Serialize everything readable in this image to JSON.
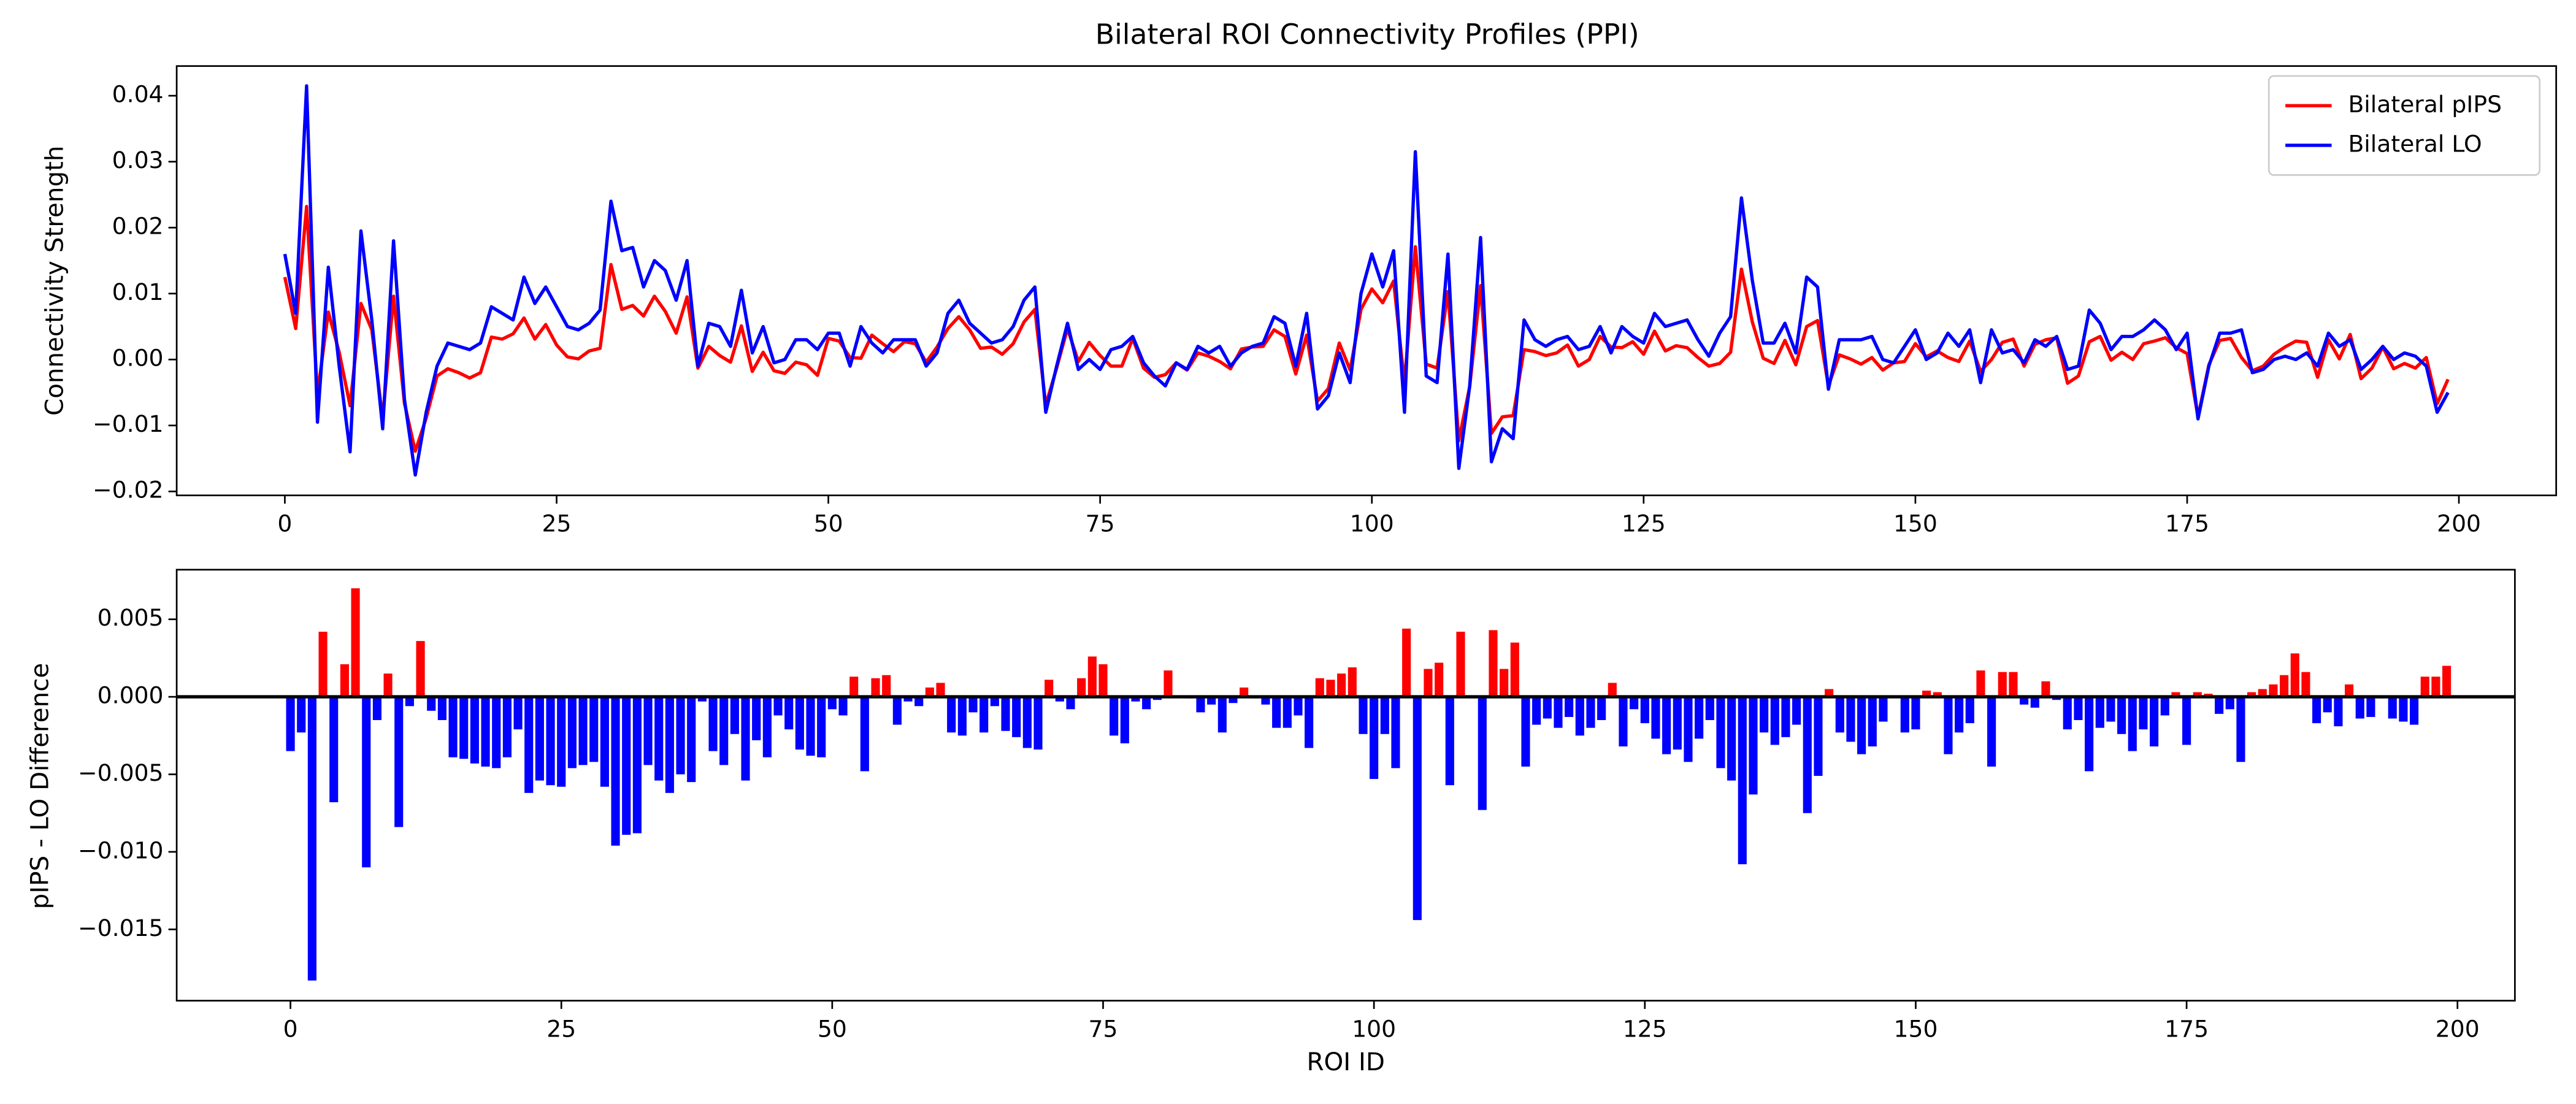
{
  "chart_data": [
    {
      "type": "line",
      "title": "Bilateral ROI Connectivity Profiles (PPI)",
      "y_label": "Connectivity Strength",
      "x": [
        0,
        1,
        2,
        3,
        4,
        5,
        6,
        7,
        8,
        9,
        10,
        11,
        12,
        13,
        14,
        15,
        16,
        17,
        18,
        19,
        20,
        21,
        22,
        23,
        24,
        25,
        26,
        27,
        28,
        29,
        30,
        31,
        32,
        33,
        34,
        35,
        36,
        37,
        38,
        39,
        40,
        41,
        42,
        43,
        44,
        45,
        46,
        47,
        48,
        49,
        50,
        51,
        52,
        53,
        54,
        55,
        56,
        57,
        58,
        59,
        60,
        61,
        62,
        63,
        64,
        65,
        66,
        67,
        68,
        69,
        70,
        71,
        72,
        73,
        74,
        75,
        76,
        77,
        78,
        79,
        80,
        81,
        82,
        83,
        84,
        85,
        86,
        87,
        88,
        89,
        90,
        91,
        92,
        93,
        94,
        95,
        96,
        97,
        98,
        99,
        100,
        101,
        102,
        103,
        104,
        105,
        106,
        107,
        108,
        109,
        110,
        111,
        112,
        113,
        114,
        115,
        116,
        117,
        118,
        119,
        120,
        121,
        122,
        123,
        124,
        125,
        126,
        127,
        128,
        129,
        130,
        131,
        132,
        133,
        134,
        135,
        136,
        137,
        138,
        139,
        140,
        141,
        142,
        143,
        144,
        145,
        146,
        147,
        148,
        149,
        150,
        151,
        152,
        153,
        154,
        155,
        156,
        157,
        158,
        159,
        160,
        161,
        162,
        163,
        164,
        165,
        166,
        167,
        168,
        169,
        170,
        171,
        172,
        173,
        174,
        175,
        176,
        177,
        178,
        179,
        180,
        181,
        182,
        183,
        184,
        185,
        186,
        187,
        188,
        189,
        190,
        191,
        192,
        193,
        194,
        195,
        196,
        197,
        198,
        199
      ],
      "series": [
        {
          "name": "Bilateral pIPS",
          "color": "#ff0000",
          "values": [
            0.0125,
            0.0047,
            0.0232,
            -0.0053,
            0.0072,
            0.0011,
            -0.007,
            0.0085,
            0.0045,
            -0.009,
            0.0096,
            -0.0066,
            -0.0139,
            -0.0089,
            -0.0025,
            -0.0014,
            -0.002,
            -0.0028,
            -0.002,
            0.0034,
            0.0031,
            0.0039,
            0.0063,
            0.0031,
            0.0053,
            0.0022,
            0.0004,
            0.0001,
            0.0013,
            0.0017,
            0.0144,
            0.0076,
            0.0082,
            0.0066,
            0.0096,
            0.0073,
            0.004,
            0.0095,
            -0.0013,
            0.002,
            0.0006,
            -0.0004,
            0.0051,
            -0.0018,
            0.0011,
            -0.0017,
            -0.0021,
            -0.0004,
            -0.0008,
            -0.0024,
            0.0032,
            0.0028,
            0.0003,
            0.0002,
            0.0037,
            0.0024,
            0.0012,
            0.0027,
            0.0024,
            -0.0004,
            0.0019,
            0.0047,
            0.0065,
            0.0045,
            0.0017,
            0.0019,
            0.0008,
            0.0024,
            0.0057,
            0.0076,
            -0.0069,
            -0.0013,
            0.0047,
            -0.0003,
            0.0026,
            0.0006,
            -0.001,
            -0.001,
            0.0032,
            -0.0013,
            -0.0027,
            -0.0023,
            -0.0005,
            -0.0016,
            0.001,
            0.0005,
            -0.0003,
            -0.0014,
            0.0016,
            0.0019,
            0.002,
            0.0045,
            0.0035,
            -0.0022,
            0.0037,
            -0.0063,
            -0.0044,
            0.0025,
            -0.0016,
            0.0076,
            0.0107,
            0.0086,
            0.0119,
            -0.0036,
            0.0171,
            -0.0007,
            -0.0013,
            0.0103,
            -0.0123,
            -0.0041,
            0.0112,
            -0.0112,
            -0.0087,
            -0.0085,
            0.0015,
            0.0012,
            0.0006,
            0.001,
            0.0022,
            -0.001,
            0,
            0.0035,
            0.0019,
            0.0018,
            0.0027,
            0.0008,
            0.0043,
            0.0013,
            0.0021,
            0.0018,
            0.0003,
            -0.001,
            -0.0006,
            0.0011,
            0.0137,
            0.0057,
            0.0002,
            -0.0006,
            0.0029,
            -0.0008,
            0.005,
            0.0059,
            -0.004,
            0.0007,
            0.0001,
            -0.0007,
            0.0003,
            -0.0016,
            -0.0005,
            -0.0003,
            0.0024,
            0.0004,
            0.0013,
            0.0003,
            -0.0003,
            0.0028,
            -0.0018,
            0,
            0.0026,
            0.0031,
            -0.001,
            0.0023,
            0.003,
            0.0033,
            -0.0036,
            -0.0025,
            0.0027,
            0.0035,
            -0.0001,
            0.0011,
            0,
            0.0024,
            0.0028,
            0.0033,
            0.0018,
            0.0009,
            -0.0087,
            -0.0008,
            0.0029,
            0.0032,
            0.0003,
            -0.0017,
            -0.001,
            0.0008,
            0.0019,
            0.0028,
            0.0026,
            -0.0027,
            0.003,
            0.0001,
            0.0038,
            -0.0029,
            -0.0013,
            0.0019,
            -0.0014,
            -0.0006,
            -0.0013,
            0.0003,
            -0.0067,
            -0.003
          ]
        },
        {
          "name": "Bilateral LO",
          "color": "#0000ff",
          "values": [
            0.016,
            0.007,
            0.0415,
            -0.0095,
            0.014,
            -0.001,
            -0.014,
            0.0195,
            0.006,
            -0.0105,
            0.018,
            -0.006,
            -0.0175,
            -0.008,
            -0.001,
            0.0025,
            0.002,
            0.0015,
            0.0025,
            0.008,
            0.007,
            0.006,
            0.0125,
            0.0085,
            0.011,
            0.008,
            0.005,
            0.0045,
            0.0055,
            0.0075,
            0.024,
            0.0165,
            0.017,
            0.011,
            0.015,
            0.0135,
            0.009,
            0.015,
            -0.001,
            0.0055,
            0.005,
            0.002,
            0.0105,
            0.001,
            0.005,
            -0.0005,
            0,
            0.003,
            0.003,
            0.0015,
            0.004,
            0.004,
            -0.001,
            0.005,
            0.0025,
            0.001,
            0.003,
            0.003,
            0.003,
            -0.001,
            0.001,
            0.007,
            0.009,
            0.0055,
            0.004,
            0.0025,
            0.003,
            0.005,
            0.009,
            0.011,
            -0.008,
            -0.001,
            0.0055,
            -0.0015,
            0,
            -0.0015,
            0.0015,
            0.002,
            0.0035,
            -0.0005,
            -0.0025,
            -0.004,
            -0.0005,
            -0.0015,
            0.002,
            0.001,
            0.002,
            -0.001,
            0.001,
            0.002,
            0.0025,
            0.0065,
            0.0055,
            -0.001,
            0.007,
            -0.0075,
            -0.0055,
            0.001,
            -0.0035,
            0.01,
            0.016,
            0.011,
            0.0165,
            -0.008,
            0.0315,
            -0.0025,
            -0.0035,
            0.016,
            -0.0165,
            -0.004,
            0.0185,
            -0.0155,
            -0.0105,
            -0.012,
            0.006,
            0.003,
            0.002,
            0.003,
            0.0035,
            0.0015,
            0.002,
            0.005,
            0.001,
            0.005,
            0.0035,
            0.0025,
            0.007,
            0.005,
            0.0055,
            0.006,
            0.003,
            0.0005,
            0.004,
            0.0065,
            0.0245,
            0.012,
            0.0025,
            0.0025,
            0.0055,
            0.001,
            0.0125,
            0.011,
            -0.0045,
            0.003,
            0.003,
            0.003,
            0.0035,
            0,
            -0.0005,
            0.002,
            0.0045,
            0,
            0.001,
            0.004,
            0.002,
            0.0045,
            -0.0035,
            0.0045,
            0.001,
            0.0015,
            -0.0005,
            0.003,
            0.002,
            0.0035,
            -0.0015,
            -0.001,
            0.0075,
            0.0055,
            0.0015,
            0.0035,
            0.0035,
            0.0045,
            0.006,
            0.0045,
            0.0015,
            0.004,
            -0.009,
            -0.001,
            0.004,
            0.004,
            0.0045,
            -0.002,
            -0.0015,
            0,
            0.0005,
            0,
            0.001,
            -0.001,
            0.004,
            0.002,
            0.003,
            -0.0015,
            0,
            0.002,
            0,
            0.001,
            0.0005,
            -0.001,
            -0.008,
            -0.005
          ]
        }
      ],
      "xlim": [
        -9.95,
        208.95
      ],
      "ylim": [
        -0.0206,
        0.0445
      ],
      "xticks": [
        0,
        25,
        50,
        75,
        100,
        125,
        150,
        175,
        200
      ],
      "yticks": [
        {
          "value": -0.02,
          "label": "−0.02"
        },
        {
          "value": -0.01,
          "label": "−0.01"
        },
        {
          "value": 0,
          "label": "0.00"
        },
        0.01,
        0.02,
        0.03,
        0.04
      ],
      "legend": "upper right",
      "grid": false
    },
    {
      "type": "bar",
      "y_label": "pIPS - LO Difference",
      "x_label": "ROI ID",
      "x": [
        0,
        1,
        2,
        3,
        4,
        5,
        6,
        7,
        8,
        9,
        10,
        11,
        12,
        13,
        14,
        15,
        16,
        17,
        18,
        19,
        20,
        21,
        22,
        23,
        24,
        25,
        26,
        27,
        28,
        29,
        30,
        31,
        32,
        33,
        34,
        35,
        36,
        37,
        38,
        39,
        40,
        41,
        42,
        43,
        44,
        45,
        46,
        47,
        48,
        49,
        50,
        51,
        52,
        53,
        54,
        55,
        56,
        57,
        58,
        59,
        60,
        61,
        62,
        63,
        64,
        65,
        66,
        67,
        68,
        69,
        70,
        71,
        72,
        73,
        74,
        75,
        76,
        77,
        78,
        79,
        80,
        81,
        82,
        83,
        84,
        85,
        86,
        87,
        88,
        89,
        90,
        91,
        92,
        93,
        94,
        95,
        96,
        97,
        98,
        99,
        100,
        101,
        102,
        103,
        104,
        105,
        106,
        107,
        108,
        109,
        110,
        111,
        112,
        113,
        114,
        115,
        116,
        117,
        118,
        119,
        120,
        121,
        122,
        123,
        124,
        125,
        126,
        127,
        128,
        129,
        130,
        131,
        132,
        133,
        134,
        135,
        136,
        137,
        138,
        139,
        140,
        141,
        142,
        143,
        144,
        145,
        146,
        147,
        148,
        149,
        150,
        151,
        152,
        153,
        154,
        155,
        156,
        157,
        158,
        159,
        160,
        161,
        162,
        163,
        164,
        165,
        166,
        167,
        168,
        169,
        170,
        171,
        172,
        173,
        174,
        175,
        176,
        177,
        178,
        179,
        180,
        181,
        182,
        183,
        184,
        185,
        186,
        187,
        188,
        189,
        190,
        191,
        192,
        193,
        194,
        195,
        196,
        197,
        198,
        199
      ],
      "values": [
        -0.0035,
        -0.0023,
        -0.0183,
        0.0042,
        -0.0068,
        0.0021,
        0.007,
        -0.011,
        -0.0015,
        0.0015,
        -0.0084,
        -0.0006,
        0.0036,
        -0.0009,
        -0.0015,
        -0.0039,
        -0.004,
        -0.0043,
        -0.0045,
        -0.0046,
        -0.0039,
        -0.0021,
        -0.0062,
        -0.0054,
        -0.0057,
        -0.0058,
        -0.0046,
        -0.0044,
        -0.0042,
        -0.0058,
        -0.0096,
        -0.0089,
        -0.0088,
        -0.0044,
        -0.0054,
        -0.0062,
        -0.005,
        -0.0055,
        -0.0003,
        -0.0035,
        -0.0044,
        -0.0024,
        -0.0054,
        -0.0028,
        -0.0039,
        -0.0012,
        -0.0021,
        -0.0034,
        -0.0038,
        -0.0039,
        -0.0008,
        -0.0012,
        0.0013,
        -0.0048,
        0.0012,
        0.0014,
        -0.0018,
        -0.0003,
        -0.0006,
        0.0006,
        0.0009,
        -0.0023,
        -0.0025,
        -0.001,
        -0.0023,
        -0.0006,
        -0.0022,
        -0.0026,
        -0.0033,
        -0.0034,
        0.0011,
        -0.0003,
        -0.0008,
        0.0012,
        0.0026,
        0.0021,
        -0.0025,
        -0.003,
        -0.0003,
        -0.0008,
        -0.0002,
        0.0017,
        0,
        -0.0001,
        -0.001,
        -0.0005,
        -0.0023,
        -0.0004,
        0.0006,
        -0.0001,
        -0.0005,
        -0.002,
        -0.002,
        -0.0012,
        -0.0033,
        0.0012,
        0.0011,
        0.0015,
        0.0019,
        -0.0024,
        -0.0053,
        -0.0024,
        -0.0046,
        0.0044,
        -0.0144,
        0.0018,
        0.0022,
        -0.0057,
        0.0042,
        -0.0001,
        -0.0073,
        0.0043,
        0.0018,
        0.0035,
        -0.0045,
        -0.0018,
        -0.0014,
        -0.002,
        -0.0013,
        -0.0025,
        -0.002,
        -0.0015,
        0.0009,
        -0.0032,
        -0.0008,
        -0.0017,
        -0.0027,
        -0.0037,
        -0.0034,
        -0.0042,
        -0.0027,
        -0.0015,
        -0.0046,
        -0.0054,
        -0.0108,
        -0.0063,
        -0.0023,
        -0.0031,
        -0.0026,
        -0.0018,
        -0.0075,
        -0.0051,
        0.0005,
        -0.0023,
        -0.0029,
        -0.0037,
        -0.0032,
        -0.0016,
        0,
        -0.0023,
        -0.0021,
        0.0004,
        0.0003,
        -0.0037,
        -0.0023,
        -0.0017,
        0.0017,
        -0.0045,
        0.0016,
        0.0016,
        -0.0005,
        -0.0007,
        0.001,
        -0.0002,
        -0.0021,
        -0.0015,
        -0.0048,
        -0.002,
        -0.0016,
        -0.0024,
        -0.0035,
        -0.0021,
        -0.0032,
        -0.0012,
        0.0003,
        -0.0031,
        0.0003,
        0.0002,
        -0.0011,
        -0.0008,
        -0.0042,
        0.0003,
        0.0005,
        0.0008,
        0.0014,
        0.0028,
        0.0016,
        -0.0017,
        -0.001,
        -0.0019,
        0.0008,
        -0.0014,
        -0.0013,
        -0.0001,
        -0.0014,
        -0.0016,
        -0.0018,
        0.0013,
        0.0013,
        0.002
      ],
      "positive_color": "#ff0000",
      "negative_color": "#0000ff",
      "zero_line_color": "#000000",
      "xlim": [
        -10.5,
        205.3
      ],
      "ylim": [
        -0.0196,
        0.0082
      ],
      "xticks": [
        0,
        25,
        50,
        75,
        100,
        125,
        150,
        175,
        200
      ],
      "yticks": [
        {
          "value": -0.015,
          "label": "−0.015"
        },
        {
          "value": -0.01,
          "label": "−0.010"
        },
        {
          "value": -0.005,
          "label": "−0.005"
        },
        {
          "value": 0,
          "label": "0.000"
        },
        0.005
      ],
      "grid": false
    }
  ]
}
